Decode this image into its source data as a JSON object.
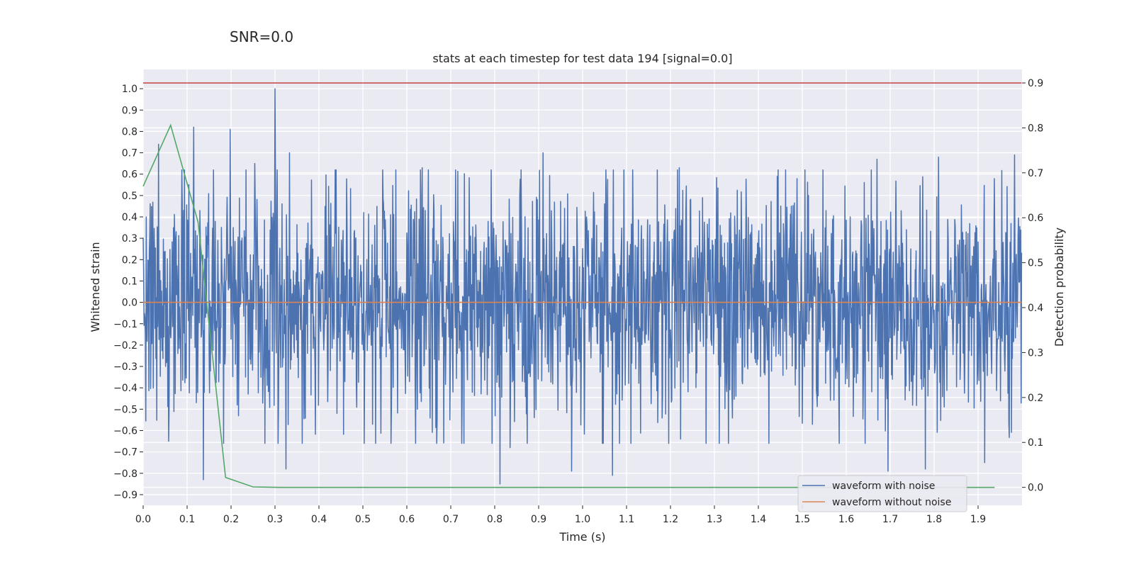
{
  "suptitle": "SNR=0.0",
  "chart_data": {
    "type": "line",
    "title": "stats at each timestep for test data 194 [signal=0.0]",
    "xlabel": "Time (s)",
    "ylabel_left": "Whitened strain",
    "ylabel_right": "Detection probability",
    "xlim": [
      0.0,
      2.0
    ],
    "ylim_left": [
      -0.95,
      1.09
    ],
    "ylim_right": [
      -0.04,
      0.93
    ],
    "grid": true,
    "legend_position": "lower right",
    "x_ticks": [
      0.0,
      0.1,
      0.2,
      0.3,
      0.4,
      0.5,
      0.6,
      0.7,
      0.8,
      0.9,
      1.0,
      1.1,
      1.2,
      1.3,
      1.4,
      1.5,
      1.6,
      1.7,
      1.8,
      1.9
    ],
    "x_tick_labels": [
      "0.0",
      "0.1",
      "0.2",
      "0.3",
      "0.4",
      "0.5",
      "0.6",
      "0.7",
      "0.8",
      "0.9",
      "1.0",
      "1.1",
      "1.2",
      "1.3",
      "1.4",
      "1.5",
      "1.6",
      "1.7",
      "1.8",
      "1.9"
    ],
    "y_left_ticks": [
      1.0,
      0.9,
      0.8,
      0.7,
      0.6,
      0.5,
      0.4,
      0.3,
      0.2,
      0.1,
      0.0,
      -0.1,
      -0.2,
      -0.3,
      -0.4,
      -0.5,
      -0.6,
      -0.7,
      -0.8,
      -0.9
    ],
    "y_left_tick_labels": [
      "1.0",
      "0.9",
      "0.8",
      "0.7",
      "0.6",
      "0.5",
      "0.4",
      "0.3",
      "0.2",
      "0.1",
      "0.0",
      "−0.1",
      "−0.2",
      "−0.3",
      "−0.4",
      "−0.5",
      "−0.6",
      "−0.7",
      "−0.8",
      "−0.9"
    ],
    "y_right_ticks": [
      0.9,
      0.8,
      0.7,
      0.6,
      0.5,
      0.4,
      0.3,
      0.2,
      0.1,
      0.0
    ],
    "y_right_tick_labels": [
      "0.9",
      "0.8",
      "0.7",
      "0.6",
      "0.5",
      "0.4",
      "0.3",
      "0.2",
      "0.1",
      "0.0"
    ],
    "series": [
      {
        "name": "waveform with noise",
        "axis": "left",
        "color": "#4c72b0",
        "generator": {
          "n_points": 2000,
          "x_start": 0.0,
          "x_end": 1.999,
          "mean": 0.0,
          "std": 0.28,
          "seed": 194
        },
        "peaks": [
          {
            "x": 0.035,
            "y": 0.74
          },
          {
            "x": 0.058,
            "y": -0.65
          },
          {
            "x": 0.115,
            "y": 0.82
          },
          {
            "x": 0.137,
            "y": -0.83
          },
          {
            "x": 0.198,
            "y": 0.81
          },
          {
            "x": 0.254,
            "y": 0.65
          },
          {
            "x": 0.3,
            "y": 1.0
          },
          {
            "x": 0.325,
            "y": -0.78
          },
          {
            "x": 0.333,
            "y": 0.7
          },
          {
            "x": 0.635,
            "y": 0.63
          },
          {
            "x": 0.812,
            "y": -0.85
          },
          {
            "x": 0.835,
            "y": -0.68
          },
          {
            "x": 0.91,
            "y": 0.7
          },
          {
            "x": 0.975,
            "y": -0.79
          },
          {
            "x": 1.068,
            "y": -0.81
          },
          {
            "x": 1.22,
            "y": 0.63
          },
          {
            "x": 1.67,
            "y": 0.67
          },
          {
            "x": 1.695,
            "y": -0.79
          },
          {
            "x": 1.78,
            "y": -0.78
          },
          {
            "x": 1.81,
            "y": 0.68
          },
          {
            "x": 1.915,
            "y": -0.75
          },
          {
            "x": 1.983,
            "y": 0.69
          }
        ]
      },
      {
        "name": "waveform without noise",
        "axis": "left",
        "color": "#dd8452",
        "x": [
          0.0,
          1.999
        ],
        "y": [
          0.0,
          0.0
        ]
      },
      {
        "name": "detection probability",
        "axis": "right",
        "color": "#55a868",
        "x": [
          0.0,
          0.0625,
          0.125,
          0.1875,
          0.25,
          0.3125,
          0.5,
          1.0,
          1.5,
          1.9375
        ],
        "y": [
          0.67,
          0.806,
          0.59,
          0.022,
          0.001,
          0.0,
          0.0,
          0.0,
          0.0,
          0.0
        ]
      },
      {
        "name": "threshold",
        "axis": "right",
        "color": "#c44e52",
        "x": [
          0.0,
          1.999
        ],
        "y": [
          0.9,
          0.9
        ]
      }
    ],
    "legend": [
      "waveform with noise",
      "waveform without noise"
    ]
  }
}
